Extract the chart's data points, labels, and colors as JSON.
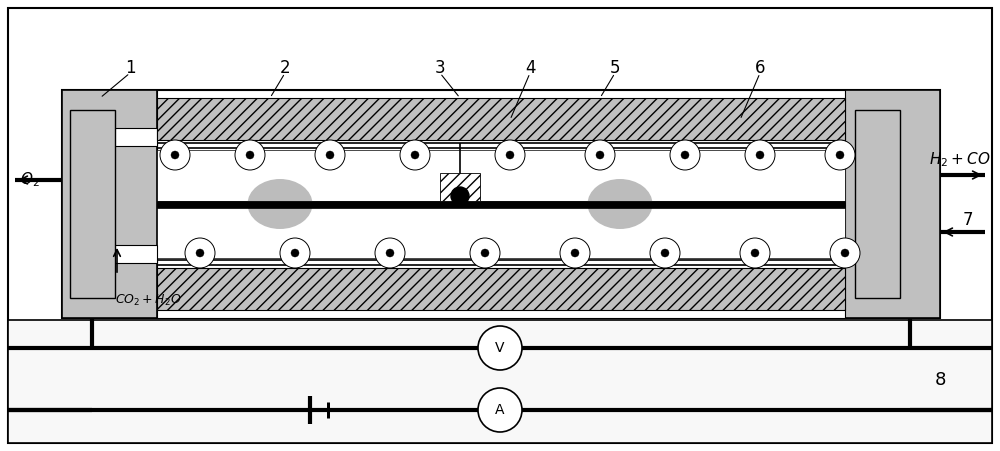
{
  "fig_width": 10.0,
  "fig_height": 4.51,
  "dpi": 100,
  "bg_color": "#ffffff",
  "gray_light": "#c0c0c0",
  "gray_med": "#999999",
  "gray_dark": "#707070",
  "black": "#000000",
  "white": "#ffffff"
}
